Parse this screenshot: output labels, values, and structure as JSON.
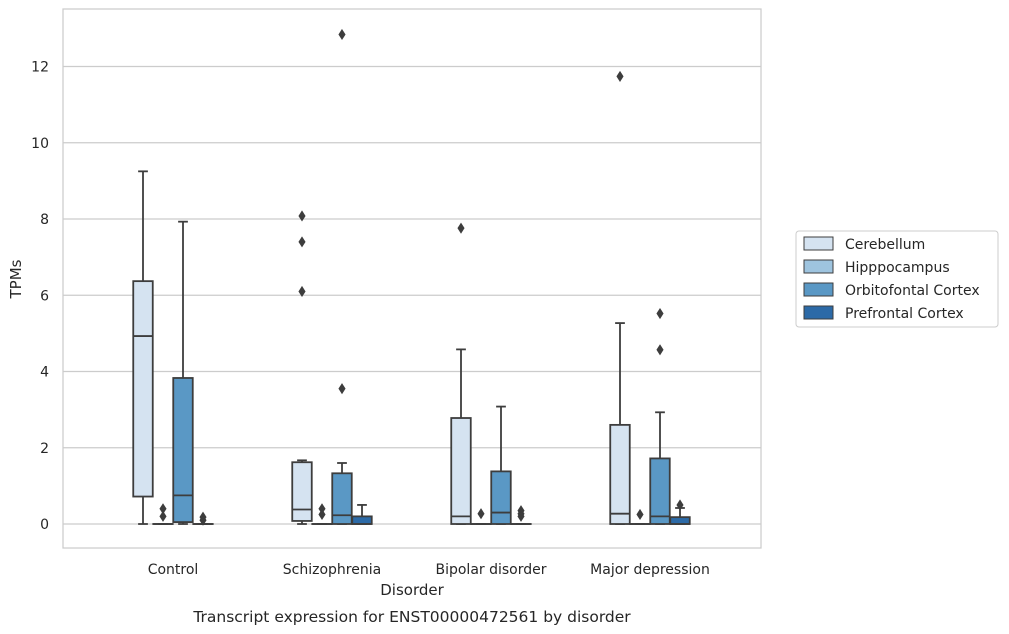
{
  "chart_data": {
    "type": "box",
    "title": "Transcript expression for ENST00000472561 by disorder",
    "xlabel": "Disorder",
    "ylabel": "TPMs",
    "ylim": [
      -0.63,
      13.5
    ],
    "yticks": [
      0,
      2,
      4,
      6,
      8,
      10,
      12
    ],
    "grid": true,
    "legend_position": "right",
    "categories": [
      "Control",
      "Schizophrenia",
      "Bipolar disorder",
      "Major depression"
    ],
    "series": [
      {
        "name": "Cerebellum",
        "color": "#d5e3f1",
        "boxes": [
          {
            "min": 0,
            "q1": 0.72,
            "median": 4.93,
            "q3": 6.37,
            "max": 9.25,
            "outliers": []
          },
          {
            "min": 0,
            "q1": 0.08,
            "median": 0.38,
            "q3": 1.62,
            "max": 1.67,
            "outliers": [
              8.08,
              7.4,
              6.1
            ]
          },
          {
            "min": 0,
            "q1": 0,
            "median": 0.2,
            "q3": 2.78,
            "max": 4.58,
            "outliers": [
              7.76
            ]
          },
          {
            "min": 0,
            "q1": 0,
            "median": 0.27,
            "q3": 2.6,
            "max": 5.27,
            "outliers": [
              11.74
            ]
          }
        ]
      },
      {
        "name": "Hipppocampus",
        "color": "#9ec4df",
        "boxes": [
          {
            "min": 0,
            "q1": 0,
            "median": 0,
            "q3": 0,
            "max": 0,
            "outliers": [
              0.4,
              0.2
            ]
          },
          {
            "min": 0,
            "q1": 0,
            "median": 0,
            "q3": 0,
            "max": 0,
            "outliers": [
              0.4,
              0.25
            ]
          },
          {
            "min": 0,
            "q1": 0,
            "median": 0,
            "q3": 0,
            "max": 0,
            "outliers": [
              0.27
            ]
          },
          {
            "min": 0,
            "q1": 0,
            "median": 0,
            "q3": 0,
            "max": 0,
            "outliers": [
              0.25
            ]
          }
        ]
      },
      {
        "name": "Orbitofontal Cortex",
        "color": "#5a98c5",
        "boxes": [
          {
            "min": 0,
            "q1": 0.05,
            "median": 0.75,
            "q3": 3.83,
            "max": 7.93,
            "outliers": []
          },
          {
            "min": 0,
            "q1": 0,
            "median": 0.23,
            "q3": 1.33,
            "max": 1.6,
            "outliers": [
              12.84,
              3.55
            ]
          },
          {
            "min": 0,
            "q1": 0,
            "median": 0.3,
            "q3": 1.38,
            "max": 3.08,
            "outliers": []
          },
          {
            "min": 0,
            "q1": 0,
            "median": 0.2,
            "q3": 1.72,
            "max": 2.93,
            "outliers": [
              5.52,
              4.57
            ]
          }
        ]
      },
      {
        "name": "Prefrontal Cortex",
        "color": "#2c6aa7",
        "boxes": [
          {
            "min": 0,
            "q1": 0,
            "median": 0,
            "q3": 0,
            "max": 0,
            "outliers": [
              0.18,
              0.1
            ]
          },
          {
            "min": 0,
            "q1": 0,
            "median": 0,
            "q3": 0.2,
            "max": 0.5,
            "outliers": []
          },
          {
            "min": 0,
            "q1": 0,
            "median": 0,
            "q3": 0,
            "max": 0,
            "outliers": [
              0.35,
              0.27,
              0.2
            ]
          },
          {
            "min": 0,
            "q1": 0,
            "median": 0,
            "q3": 0.18,
            "max": 0.42,
            "outliers": [
              0.5
            ]
          }
        ]
      }
    ]
  }
}
